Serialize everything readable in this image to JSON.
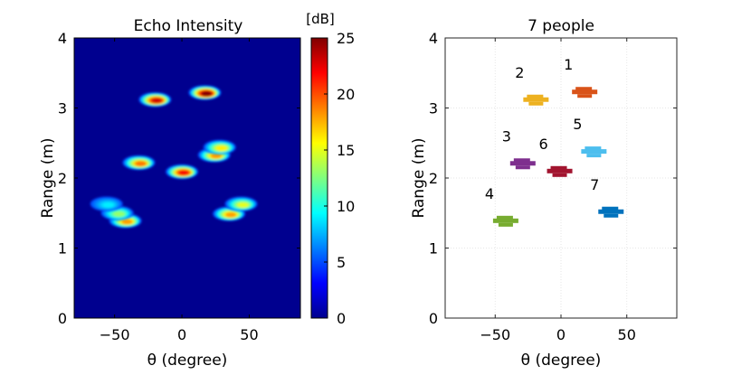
{
  "chart_data": [
    {
      "type": "heatmap",
      "title": "Echo Intensity",
      "xlabel": "θ (degree)",
      "ylabel": "Range (m)",
      "xlim": [
        -80,
        88
      ],
      "ylim": [
        0,
        4
      ],
      "xticks": [
        "-50",
        "0",
        "50"
      ],
      "yticks": [
        "0",
        "1",
        "2",
        "3",
        "4"
      ],
      "background_value": 0,
      "blobs": [
        {
          "theta": 17,
          "range": 3.22,
          "peak": 25
        },
        {
          "theta": -20,
          "range": 3.12,
          "peak": 23
        },
        {
          "theta": -32,
          "range": 2.22,
          "peak": 19
        },
        {
          "theta": 0,
          "range": 2.09,
          "peak": 22
        },
        {
          "theta": 24,
          "range": 2.33,
          "peak": 18
        },
        {
          "theta": 28,
          "range": 2.44,
          "peak": 16
        },
        {
          "theta": -42,
          "range": 1.39,
          "peak": 18
        },
        {
          "theta": -48,
          "range": 1.5,
          "peak": 13
        },
        {
          "theta": 35,
          "range": 1.49,
          "peak": 18
        },
        {
          "theta": 44,
          "range": 1.63,
          "peak": 15
        },
        {
          "theta": -56,
          "range": 1.63,
          "peak": 9
        }
      ],
      "grid": false,
      "colorbar": {
        "label": "[dB]",
        "range": [
          0,
          25
        ],
        "ticks": [
          "0",
          "5",
          "10",
          "15",
          "20",
          "25"
        ],
        "colormap": "jet"
      }
    },
    {
      "type": "scatter",
      "title": "7 people",
      "xlabel": "θ (degree)",
      "ylabel": "Range (m)",
      "xlim": [
        -88,
        88
      ],
      "ylim": [
        0,
        4
      ],
      "xticks": [
        "-50",
        "0",
        "50"
      ],
      "yticks": [
        "0",
        "1",
        "2",
        "3",
        "4"
      ],
      "grid": true,
      "people": [
        {
          "label": "1",
          "theta": 18,
          "range": 3.21,
          "color": "#d95319"
        },
        {
          "label": "2",
          "theta": -19,
          "range": 3.1,
          "color": "#edb120"
        },
        {
          "label": "3",
          "theta": -29,
          "range": 2.19,
          "color": "#7e2f8e"
        },
        {
          "label": "4",
          "theta": -42,
          "range": 1.37,
          "color": "#77ac30"
        },
        {
          "label": "5",
          "theta": 25,
          "range": 2.36,
          "color": "#4dbeee"
        },
        {
          "label": "6",
          "theta": -1,
          "range": 2.08,
          "color": "#a2142f"
        },
        {
          "label": "7",
          "theta": 38,
          "range": 1.5,
          "color": "#0072bd"
        }
      ]
    }
  ]
}
